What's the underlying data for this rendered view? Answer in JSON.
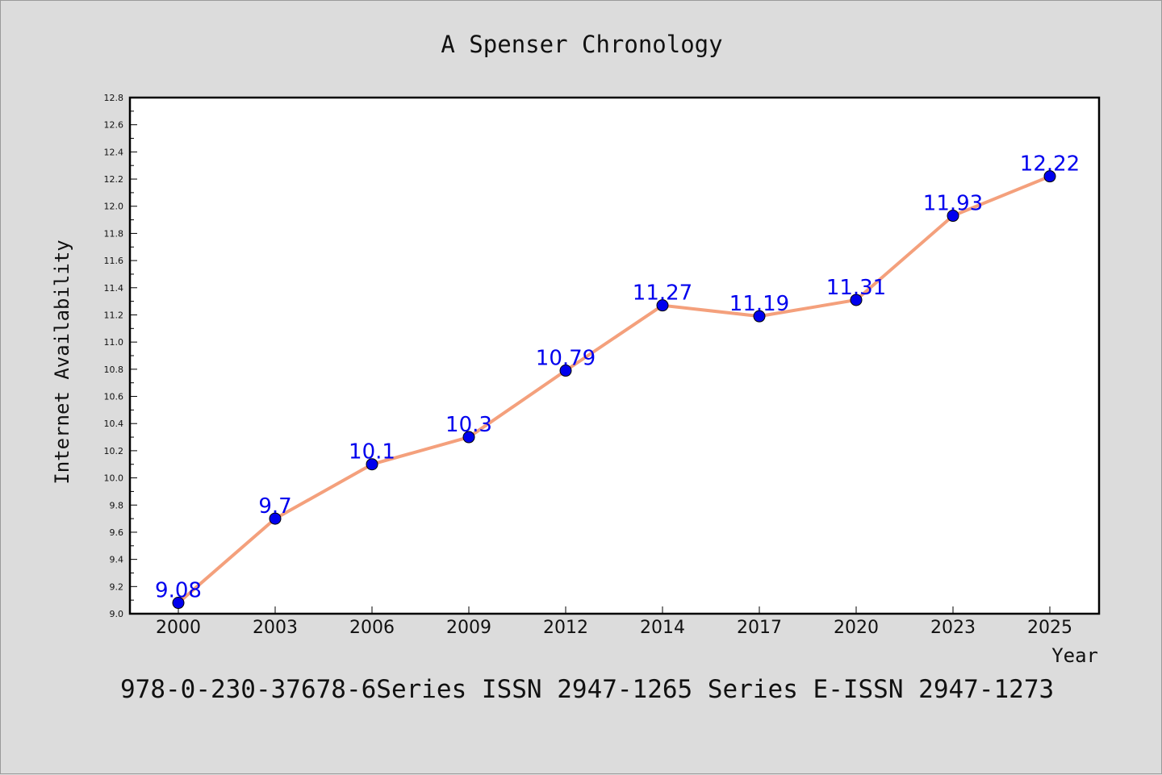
{
  "chart_data": {
    "type": "line",
    "title": "A Spenser Chronology",
    "xlabel": "Year",
    "ylabel": "Internet Availability",
    "categories": [
      "2000",
      "2003",
      "2006",
      "2009",
      "2012",
      "2014",
      "2017",
      "2020",
      "2023",
      "2025"
    ],
    "series": [
      {
        "values": [
          9.08,
          9.7,
          10.1,
          10.3,
          10.79,
          11.27,
          11.19,
          11.31,
          11.93,
          12.22
        ],
        "line_color": "#f4a07c",
        "marker_color": "#0000ee",
        "label_color": "#0000ee"
      }
    ],
    "data_labels": [
      "9.08",
      "9.7",
      "10.1",
      "10.3",
      "10.79",
      "11.27",
      "11.19",
      "11.31",
      "11.93",
      "12.22"
    ],
    "yticks": [
      "9.0",
      "9.2",
      "9.4",
      "9.6",
      "9.8",
      "10.0",
      "10.2",
      "10.4",
      "10.6",
      "10.8",
      "11.0",
      "11.2",
      "11.4",
      "11.6",
      "11.8",
      "12.0",
      "12.2",
      "12.4",
      "12.6",
      "12.8"
    ],
    "ylim": [
      9.0,
      12.8
    ],
    "grid": false,
    "legend": false,
    "background": "#dcdcdc",
    "plot_background": "#ffffff"
  },
  "footer": "978-0-230-37678-6Series ISSN 2947-1265 Series E-ISSN 2947-1273"
}
